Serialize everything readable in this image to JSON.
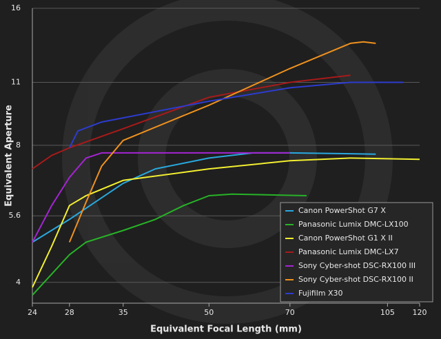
{
  "chart_data": {
    "type": "line",
    "x_label": "Equivalent Focal Length (mm)",
    "y_label": "Equivalent Aperture",
    "xscale": "log",
    "yscale": "log",
    "xlim": [
      24,
      120
    ],
    "ylim": [
      3.6,
      16
    ],
    "xticks": [
      24,
      28,
      35,
      50,
      70,
      105,
      120
    ],
    "yticks": [
      4,
      5.6,
      8,
      11,
      16
    ],
    "grid": true,
    "legend": "lower right",
    "series": [
      {
        "name": "Canon PowerShot G7 X",
        "color": "#29a9e0",
        "x": [
          24,
          28,
          35,
          40,
          50,
          60,
          70,
          100
        ],
        "values": [
          4.9,
          5.5,
          6.6,
          7.1,
          7.5,
          7.7,
          7.7,
          7.65
        ]
      },
      {
        "name": "Panasonic Lumix DMC-LX100",
        "color": "#27b427",
        "x": [
          24,
          28,
          30,
          35,
          40,
          45,
          50,
          55,
          75
        ],
        "values": [
          3.75,
          4.6,
          4.9,
          5.2,
          5.5,
          5.9,
          6.2,
          6.25,
          6.2
        ]
      },
      {
        "name": "Canon PowerShot G1 X II",
        "color": "#f4f030",
        "x": [
          24,
          26,
          28,
          30,
          35,
          50,
          70,
          90,
          120
        ],
        "values": [
          3.9,
          4.8,
          5.9,
          6.2,
          6.7,
          7.1,
          7.4,
          7.5,
          7.45
        ]
      },
      {
        "name": "Panasonic Lumix DMC-LX7",
        "color": "#a81a1a",
        "x": [
          24,
          26,
          28,
          35,
          50,
          70,
          90
        ],
        "values": [
          7.1,
          7.6,
          7.9,
          8.7,
          10.2,
          11,
          11.4
        ]
      },
      {
        "name": "Sony Cyber-shot DSC-RX100 III",
        "color": "#a524d4",
        "x": [
          24,
          26,
          28,
          30,
          32,
          50,
          70
        ],
        "values": [
          4.9,
          5.9,
          6.8,
          7.5,
          7.7,
          7.7,
          7.7
        ]
      },
      {
        "name": "Sony Cyber-shot DSC-RX100 II",
        "color": "#f0921e",
        "x": [
          28,
          30,
          32,
          35,
          45,
          50,
          70,
          90,
          95,
          100
        ],
        "values": [
          4.9,
          6.0,
          7.2,
          8.2,
          9.3,
          9.8,
          11.8,
          13.4,
          13.5,
          13.4
        ]
      },
      {
        "name": "Fujifilm X30",
        "color": "#2c3cd0",
        "x": [
          28,
          29,
          32,
          50,
          70,
          90,
          112
        ],
        "values": [
          7.9,
          8.6,
          9,
          10,
          10.7,
          11,
          11
        ]
      }
    ]
  }
}
